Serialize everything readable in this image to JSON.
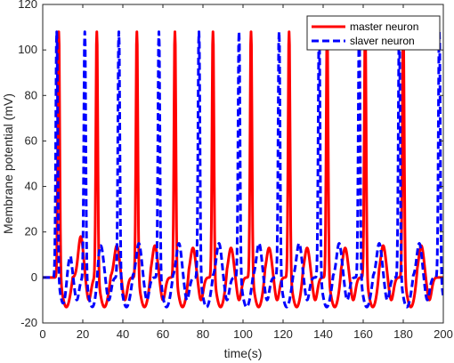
{
  "chart_data": {
    "type": "line",
    "title": "",
    "xlabel": "time(s)",
    "ylabel": "Membrane potential (mV)",
    "xlim": [
      0,
      200
    ],
    "ylim": [
      -20,
      120
    ],
    "xticks": [
      0,
      20,
      40,
      60,
      80,
      100,
      120,
      140,
      160,
      180,
      200
    ],
    "yticks": [
      -20,
      0,
      20,
      40,
      60,
      80,
      100,
      120
    ],
    "grid": false,
    "legend_position": "top-right",
    "series": [
      {
        "name": "master neuron",
        "color": "#ff0000",
        "style": "solid",
        "spike_times": [
          8,
          27,
          47,
          66,
          85,
          104,
          123,
          142,
          161,
          180
        ],
        "spike_peak": 108,
        "trough": -13,
        "rest": 0,
        "subthreshold_peaks": [
          [
            19,
            8
          ],
          [
            37,
            4
          ],
          [
            56,
            4
          ],
          [
            75,
            3
          ],
          [
            94,
            3
          ],
          [
            113,
            3
          ],
          [
            132,
            3
          ],
          [
            151,
            3
          ],
          [
            170,
            4
          ],
          [
            189,
            4
          ]
        ]
      },
      {
        "name": "slaver neuron",
        "color": "#0000ff",
        "style": "dashed",
        "spike_times": [
          7,
          21,
          38,
          58,
          78,
          98,
          118,
          138,
          158,
          178,
          198
        ],
        "spike_peak": 108,
        "trough": -13,
        "rest": 0,
        "subthreshold_peaks": [
          [
            13,
            3
          ],
          [
            29,
            4
          ],
          [
            48,
            5
          ],
          [
            68,
            5
          ],
          [
            88,
            5
          ],
          [
            108,
            5
          ],
          [
            128,
            5
          ],
          [
            148,
            5
          ],
          [
            168,
            5
          ],
          [
            188,
            5
          ]
        ]
      }
    ]
  }
}
